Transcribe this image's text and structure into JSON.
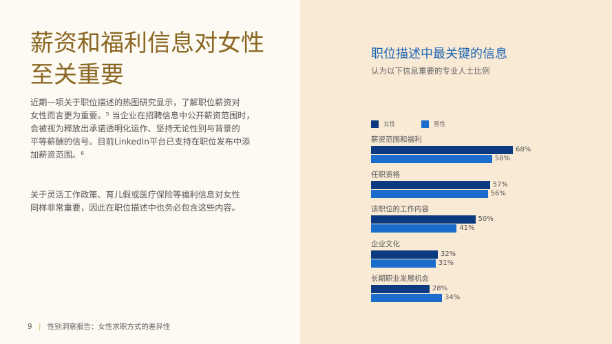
{
  "headline": [
    "薪资和福利信息对女性",
    "至关重要"
  ],
  "paragraphs": [
    [
      "近期一项关于职位描述的热图研究显示，了解职位薪资对",
      "女性而言更为重要。⁵ 当企业在招聘信息中公开薪资范围时，",
      "会被视为释放出承诺透明化运作、坚持无论性别与背景的",
      "平等薪酬的信号。目前LinkedIn平台已支持在职位发布中添",
      "加薪资范围。⁶"
    ],
    [
      "关于灵活工作政策、育儿假或医疗保险等福利信息对女性",
      "同样非常重要，因此在职位描述中也务必包含这些内容。"
    ]
  ],
  "footer": {
    "page": "9",
    "separator": "|",
    "text": "性别洞察报告：女性求职方式的差异性"
  },
  "chart_data": {
    "type": "bar",
    "orientation": "horizontal",
    "title": "职位描述中最关键的信息",
    "subtitle": "认为以下信息重要的专业人士比例",
    "legend_placement": "top-left",
    "unit": "%",
    "categories": [
      "薪资范围和福利",
      "任职资格",
      "该职位的工作内容",
      "企业文化",
      "长期职业发展机会"
    ],
    "series": [
      {
        "name": "女性",
        "color": "#0c3a80",
        "values": [
          68,
          57,
          50,
          32,
          28
        ]
      },
      {
        "name": "男性",
        "color": "#1b6dcc",
        "values": [
          58,
          56,
          41,
          31,
          34
        ]
      }
    ],
    "xlim": [
      0,
      100
    ]
  }
}
